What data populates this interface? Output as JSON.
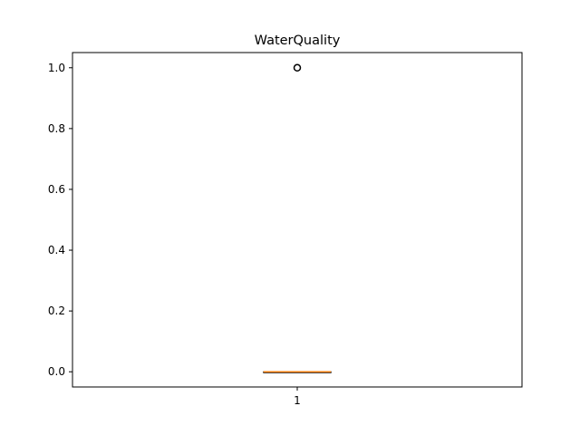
{
  "chart_data": {
    "type": "box",
    "title": "WaterQuality",
    "xlabel": "",
    "ylabel": "",
    "categories": [
      "1"
    ],
    "ylim": [
      -0.05,
      1.05
    ],
    "yticks": [
      0.0,
      0.2,
      0.4,
      0.6,
      0.8,
      1.0
    ],
    "ytick_labels": [
      "0.0",
      "0.2",
      "0.4",
      "0.6",
      "0.8",
      "1.0"
    ],
    "grid": false,
    "boxes": [
      {
        "category": "1",
        "min": 0,
        "q1": 0,
        "median": 0,
        "q3": 0,
        "max": 0,
        "outliers": [
          1.0
        ]
      }
    ],
    "colors": {
      "box": "#000000",
      "median": "#ff7f0e",
      "outlier": "#000000"
    }
  }
}
